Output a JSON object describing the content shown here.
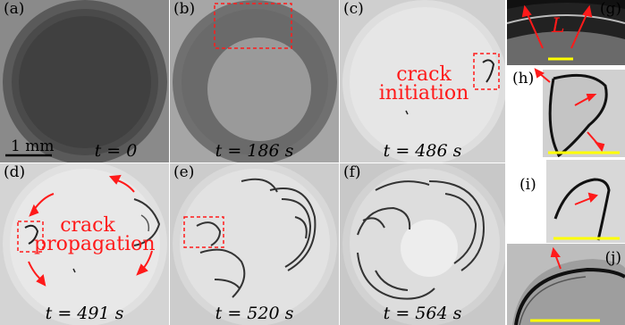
{
  "panels": [
    {
      "label": "(a)",
      "time": "t = 0"
    },
    {
      "label": "(b)",
      "time": "t = 186 s"
    },
    {
      "label": "(c)",
      "time": "t = 486 s"
    },
    {
      "label": "(d)",
      "time": "t = 491 s"
    },
    {
      "label": "(e)",
      "time": "t = 520 s"
    },
    {
      "label": "(f)",
      "time": "t = 564 s"
    },
    {
      "label": "(g)"
    },
    {
      "label": "(h)"
    },
    {
      "label": "(i)"
    },
    {
      "label": "(j)"
    }
  ],
  "annotations": {
    "initiation": "crack\ninitiation",
    "propagation": "crack\npropagation",
    "length_symbol": "L"
  },
  "scale_bar": {
    "label": "1 mm"
  },
  "colors": {
    "annotation": "#ff1a1a",
    "scale_bar_yellow": "#ffff00"
  }
}
